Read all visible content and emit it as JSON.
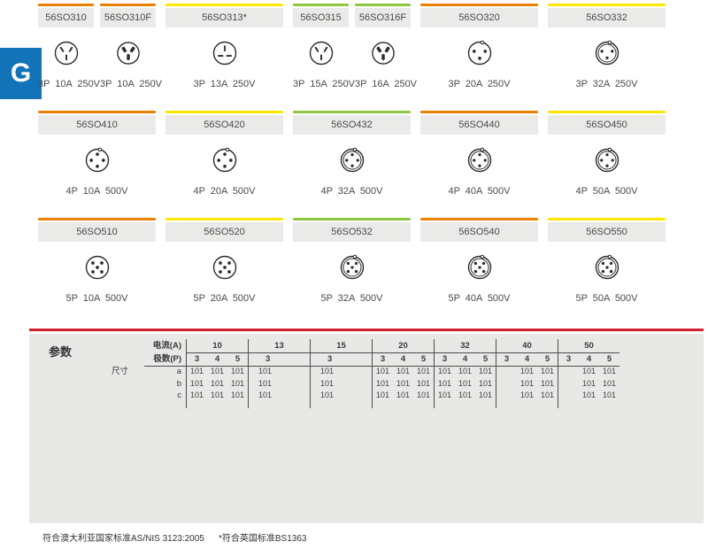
{
  "side_tab": {
    "letter": "G",
    "color": "#1273b9"
  },
  "colors": {
    "accent_orange": "#ee7f00",
    "accent_yellow": "#ffe500",
    "accent_green": "#8dc63f",
    "red_rule": "#d4202c",
    "header_gray": "#eaeae8",
    "panel_gray": "#e8e8e6"
  },
  "products": {
    "rows": [
      {
        "columns": [
          {
            "cards": [
              {
                "code": "56SO310",
                "strip_color": "#ee7f00",
                "icon": "au-3pin-socket-icon",
                "spec": "3P 10A 250V"
              },
              {
                "code": "56SO310F",
                "strip_color": "#ee7f00",
                "icon": "au-3pin-filled-socket-icon",
                "spec": "3P 10A 250V"
              }
            ]
          },
          {
            "cards": [
              {
                "code": "56SO313*",
                "strip_color": "#ffe500",
                "icon": "uk-3pin-socket-icon",
                "spec": "3P 13A 250V"
              }
            ]
          },
          {
            "cards": [
              {
                "code": "56SO315",
                "strip_color": "#8dc63f",
                "icon": "au-3pin-socket-icon",
                "spec": "3P 15A 250V"
              },
              {
                "code": "56SO316F",
                "strip_color": "#8dc63f",
                "icon": "au-3pin-filled-socket-icon",
                "spec": "3P 16A 250V"
              }
            ]
          },
          {
            "cards": [
              {
                "code": "56SO320",
                "strip_color": "#ee7f00",
                "icon": "round-3pin-socket-icon",
                "spec": "3P 20A 250V"
              }
            ]
          },
          {
            "cards": [
              {
                "code": "56SO332",
                "strip_color": "#ffe500",
                "icon": "round-3pin-double-socket-icon",
                "spec": "3P 32A 250V"
              }
            ]
          }
        ]
      },
      {
        "columns": [
          {
            "cards": [
              {
                "code": "56SO410",
                "strip_color": "#ee7f00",
                "icon": "round-4pin-socket-icon",
                "spec": "4P 10A 500V"
              }
            ]
          },
          {
            "cards": [
              {
                "code": "56SO420",
                "strip_color": "#ffe500",
                "icon": "round-4pin-socket-icon",
                "spec": "4P 20A 500V"
              }
            ]
          },
          {
            "cards": [
              {
                "code": "56SO432",
                "strip_color": "#8dc63f",
                "icon": "round-4pin-double-socket-icon",
                "spec": "4P 32A 500V"
              }
            ]
          },
          {
            "cards": [
              {
                "code": "56SO440",
                "strip_color": "#ee7f00",
                "icon": "round-4pin-double-socket-icon",
                "spec": "4P 40A 500V"
              }
            ]
          },
          {
            "cards": [
              {
                "code": "56SO450",
                "strip_color": "#ffe500",
                "icon": "round-4pin-double-socket-icon",
                "spec": "4P 50A 500V"
              }
            ]
          }
        ]
      },
      {
        "columns": [
          {
            "cards": [
              {
                "code": "56SO510",
                "strip_color": "#ee7f00",
                "icon": "round-5pin-socket-icon",
                "spec": "5P 10A 500V"
              }
            ]
          },
          {
            "cards": [
              {
                "code": "56SO520",
                "strip_color": "#ffe500",
                "icon": "round-5pin-socket-icon",
                "spec": "5P 20A 500V"
              }
            ]
          },
          {
            "cards": [
              {
                "code": "56SO532",
                "strip_color": "#8dc63f",
                "icon": "round-5pin-double-socket-icon",
                "spec": "5P 32A 500V"
              }
            ]
          },
          {
            "cards": [
              {
                "code": "56SO540",
                "strip_color": "#ee7f00",
                "icon": "round-5pin-double-socket-icon",
                "spec": "5P 40A 500V"
              }
            ]
          },
          {
            "cards": [
              {
                "code": "56SO550",
                "strip_color": "#ffe500",
                "icon": "round-5pin-double-socket-icon",
                "spec": "5P 50A 500V"
              }
            ]
          }
        ]
      }
    ]
  },
  "table": {
    "title": "参数",
    "current_label": "电流(A)",
    "poles_label": "极数(P)",
    "size_label": "尺寸",
    "row_labels": [
      "a",
      "b",
      "c"
    ],
    "groups": [
      {
        "current": "10",
        "poles": [
          "3",
          "4",
          "5"
        ],
        "values": {
          "a": [
            "101",
            "101",
            "101"
          ],
          "b": [
            "101",
            "101",
            "101"
          ],
          "c": [
            "101",
            "101",
            "101"
          ]
        }
      },
      {
        "current": "13",
        "poles": [
          "3"
        ],
        "values": {
          "a": [
            "101"
          ],
          "b": [
            "101"
          ],
          "c": [
            "101"
          ]
        }
      },
      {
        "current": "15",
        "poles": [
          "3"
        ],
        "values": {
          "a": [
            "101"
          ],
          "b": [
            "101"
          ],
          "c": [
            "101"
          ]
        }
      },
      {
        "current": "20",
        "poles": [
          "3",
          "4",
          "5"
        ],
        "values": {
          "a": [
            "101",
            "101",
            "101"
          ],
          "b": [
            "101",
            "101",
            "101"
          ],
          "c": [
            "101",
            "101",
            "101"
          ]
        }
      },
      {
        "current": "32",
        "poles": [
          "3",
          "4",
          "5"
        ],
        "values": {
          "a": [
            "101",
            "101",
            "101"
          ],
          "b": [
            "101",
            "101",
            "101"
          ],
          "c": [
            "101",
            "101",
            "101"
          ]
        }
      },
      {
        "current": "40",
        "poles": [
          "3",
          "4",
          "5"
        ],
        "values": {
          "a": [
            "",
            "101",
            "101"
          ],
          "b": [
            "",
            "101",
            "101"
          ],
          "c": [
            "",
            "101",
            "101"
          ]
        }
      },
      {
        "current": "50",
        "poles": [
          "3",
          "4",
          "5"
        ],
        "values": {
          "a": [
            "",
            "101",
            "101"
          ],
          "b": [
            "",
            "101",
            "101"
          ],
          "c": [
            "",
            "101",
            "101"
          ]
        }
      }
    ]
  },
  "footnotes": {
    "left": "符合澳大利亚国家标准AS/NIS 3123:2005",
    "right": "*符合英国标准BS1363"
  }
}
